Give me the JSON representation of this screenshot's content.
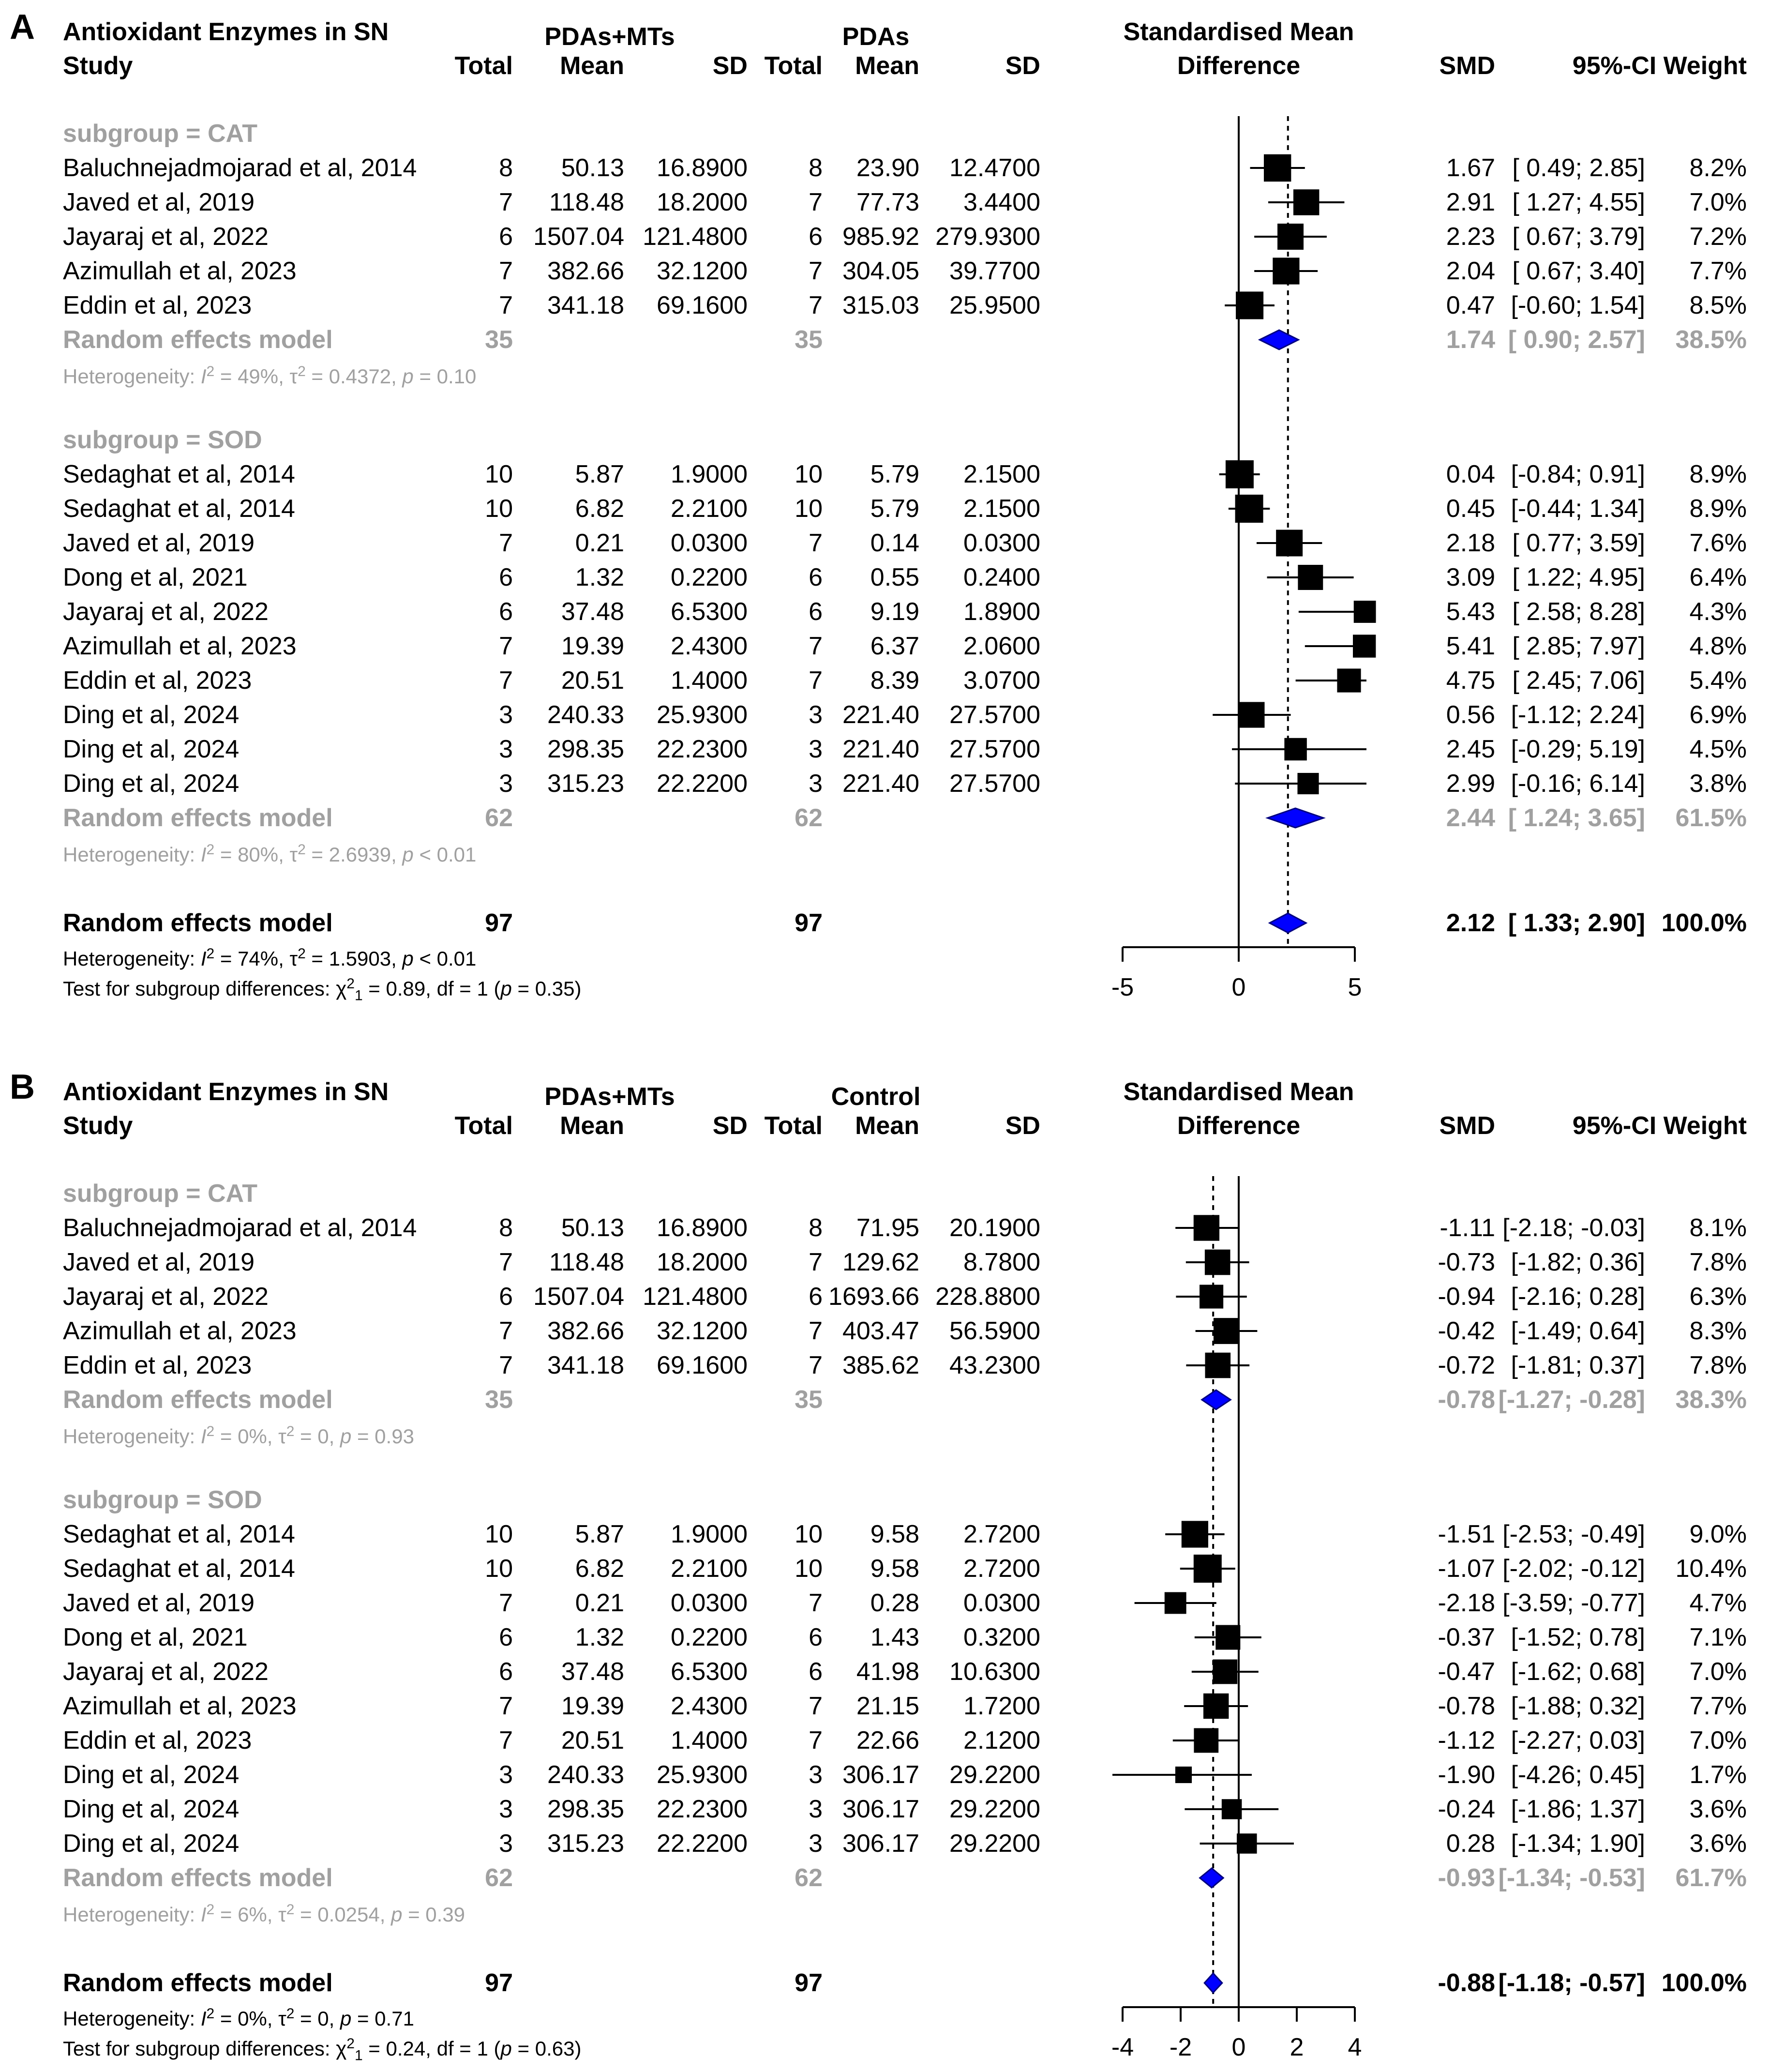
{
  "chart_data": [
    {
      "type": "forest",
      "panel_label": "A",
      "title": "Antioxidant Enzymes in SN",
      "headers": {
        "study": "Study",
        "group1_name": "PDAs+MTs",
        "group2_name": "PDAs",
        "total": "Total",
        "mean": "Mean",
        "sd": "SD",
        "effect_line1": "Standardised Mean",
        "effect_line2": "Difference",
        "smd": "SMD",
        "ci_weight": "95%-CI Weight"
      },
      "xlim": [
        -5,
        5
      ],
      "xticks": [
        "-5",
        "0",
        "5"
      ],
      "overall_line": 2.12,
      "subgroups": [
        {
          "label": "subgroup = CAT",
          "studies": [
            {
              "study": "Baluchnejadmojarad et al, 2014",
              "n1": "8",
              "mean1": "50.13",
              "sd1": "16.8900",
              "n2": "8",
              "mean2": "23.90",
              "sd2": "12.4700",
              "smd": 1.67,
              "lo": 0.49,
              "hi": 2.85,
              "smd_text": "1.67",
              "ci_text": "[ 0.49; 2.85]",
              "weight": "8.2%",
              "w": 8.2
            },
            {
              "study": "Javed et al, 2019",
              "n1": "7",
              "mean1": "118.48",
              "sd1": "18.2000",
              "n2": "7",
              "mean2": "77.73",
              "sd2": "3.4400",
              "smd": 2.91,
              "lo": 1.27,
              "hi": 4.55,
              "smd_text": "2.91",
              "ci_text": "[ 1.27; 4.55]",
              "weight": "7.0%",
              "w": 7.0
            },
            {
              "study": "Jayaraj et al, 2022",
              "n1": "6",
              "mean1": "1507.04",
              "sd1": "121.4800",
              "n2": "6",
              "mean2": "985.92",
              "sd2": "279.9300",
              "smd": 2.23,
              "lo": 0.67,
              "hi": 3.79,
              "smd_text": "2.23",
              "ci_text": "[ 0.67; 3.79]",
              "weight": "7.2%",
              "w": 7.2
            },
            {
              "study": "Azimullah et al, 2023",
              "n1": "7",
              "mean1": "382.66",
              "sd1": "32.1200",
              "n2": "7",
              "mean2": "304.05",
              "sd2": "39.7700",
              "smd": 2.04,
              "lo": 0.67,
              "hi": 3.4,
              "smd_text": "2.04",
              "ci_text": "[ 0.67; 3.40]",
              "weight": "7.7%",
              "w": 7.7
            },
            {
              "study": "Eddin et al, 2023",
              "n1": "7",
              "mean1": "341.18",
              "sd1": "69.1600",
              "n2": "7",
              "mean2": "315.03",
              "sd2": "25.9500",
              "smd": 0.47,
              "lo": -0.6,
              "hi": 1.54,
              "smd_text": "0.47",
              "ci_text": "[-0.60; 1.54]",
              "weight": "8.5%",
              "w": 8.5
            }
          ],
          "pooled": {
            "label": "Random effects model",
            "n1": "35",
            "n2": "35",
            "smd": 1.74,
            "lo": 0.9,
            "hi": 2.57,
            "smd_text": "1.74",
            "ci_text": "[ 0.90; 2.57]",
            "weight": "38.5%"
          },
          "heterogeneity": {
            "prefix": "Heterogeneity: ",
            "I": "I",
            "i2_sup": "2",
            "i2_val": " = 49%, ",
            "tau": "τ",
            "tau_sup": "2",
            "tau_val": " = 0.4372, ",
            "p": "p",
            "p_val": " = 0.10"
          }
        },
        {
          "label": "subgroup = SOD",
          "studies": [
            {
              "study": "Sedaghat et al, 2014",
              "n1": "10",
              "mean1": "5.87",
              "sd1": "1.9000",
              "n2": "10",
              "mean2": "5.79",
              "sd2": "2.1500",
              "smd": 0.04,
              "lo": -0.84,
              "hi": 0.91,
              "smd_text": "0.04",
              "ci_text": "[-0.84; 0.91]",
              "weight": "8.9%",
              "w": 8.9
            },
            {
              "study": "Sedaghat et al, 2014",
              "n1": "10",
              "mean1": "6.82",
              "sd1": "2.2100",
              "n2": "10",
              "mean2": "5.79",
              "sd2": "2.1500",
              "smd": 0.45,
              "lo": -0.44,
              "hi": 1.34,
              "smd_text": "0.45",
              "ci_text": "[-0.44; 1.34]",
              "weight": "8.9%",
              "w": 8.9
            },
            {
              "study": "Javed et al, 2019",
              "n1": "7",
              "mean1": "0.21",
              "sd1": "0.0300",
              "n2": "7",
              "mean2": "0.14",
              "sd2": "0.0300",
              "smd": 2.18,
              "lo": 0.77,
              "hi": 3.59,
              "smd_text": "2.18",
              "ci_text": "[ 0.77; 3.59]",
              "weight": "7.6%",
              "w": 7.6
            },
            {
              "study": "Dong et al, 2021",
              "n1": "6",
              "mean1": "1.32",
              "sd1": "0.2200",
              "n2": "6",
              "mean2": "0.55",
              "sd2": "0.2400",
              "smd": 3.09,
              "lo": 1.22,
              "hi": 4.95,
              "smd_text": "3.09",
              "ci_text": "[ 1.22; 4.95]",
              "weight": "6.4%",
              "w": 6.4
            },
            {
              "study": "Jayaraj et al, 2022",
              "n1": "6",
              "mean1": "37.48",
              "sd1": "6.5300",
              "n2": "6",
              "mean2": "9.19",
              "sd2": "1.8900",
              "smd": 5.43,
              "lo": 2.58,
              "hi": 8.28,
              "smd_text": "5.43",
              "ci_text": "[ 2.58; 8.28]",
              "weight": "4.3%",
              "w": 4.3
            },
            {
              "study": "Azimullah et al, 2023",
              "n1": "7",
              "mean1": "19.39",
              "sd1": "2.4300",
              "n2": "7",
              "mean2": "6.37",
              "sd2": "2.0600",
              "smd": 5.41,
              "lo": 2.85,
              "hi": 7.97,
              "smd_text": "5.41",
              "ci_text": "[ 2.85; 7.97]",
              "weight": "4.8%",
              "w": 4.8
            },
            {
              "study": "Eddin et al, 2023",
              "n1": "7",
              "mean1": "20.51",
              "sd1": "1.4000",
              "n2": "7",
              "mean2": "8.39",
              "sd2": "3.0700",
              "smd": 4.75,
              "lo": 2.45,
              "hi": 7.06,
              "smd_text": "4.75",
              "ci_text": "[ 2.45; 7.06]",
              "weight": "5.4%",
              "w": 5.4
            },
            {
              "study": "Ding et al, 2024",
              "n1": "3",
              "mean1": "240.33",
              "sd1": "25.9300",
              "n2": "3",
              "mean2": "221.40",
              "sd2": "27.5700",
              "smd": 0.56,
              "lo": -1.12,
              "hi": 2.24,
              "smd_text": "0.56",
              "ci_text": "[-1.12; 2.24]",
              "weight": "6.9%",
              "w": 6.9
            },
            {
              "study": "Ding et al, 2024",
              "n1": "3",
              "mean1": "298.35",
              "sd1": "22.2300",
              "n2": "3",
              "mean2": "221.40",
              "sd2": "27.5700",
              "smd": 2.45,
              "lo": -0.29,
              "hi": 5.19,
              "smd_text": "2.45",
              "ci_text": "[-0.29; 5.19]",
              "weight": "4.5%",
              "w": 4.5
            },
            {
              "study": "Ding et al, 2024",
              "n1": "3",
              "mean1": "315.23",
              "sd1": "22.2200",
              "n2": "3",
              "mean2": "221.40",
              "sd2": "27.5700",
              "smd": 2.99,
              "lo": -0.16,
              "hi": 6.14,
              "smd_text": "2.99",
              "ci_text": "[-0.16; 6.14]",
              "weight": "3.8%",
              "w": 3.8
            }
          ],
          "pooled": {
            "label": "Random effects model",
            "n1": "62",
            "n2": "62",
            "smd": 2.44,
            "lo": 1.24,
            "hi": 3.65,
            "smd_text": "2.44",
            "ci_text": "[ 1.24; 3.65]",
            "weight": "61.5%"
          },
          "heterogeneity": {
            "prefix": "Heterogeneity: ",
            "I": "I",
            "i2_sup": "2",
            "i2_val": " = 80%, ",
            "tau": "τ",
            "tau_sup": "2",
            "tau_val": " = 2.6939, ",
            "p": "p",
            "p_val": " < 0.01"
          }
        }
      ],
      "overall": {
        "label": "Random effects model",
        "n1": "97",
        "n2": "97",
        "smd": 2.12,
        "lo": 1.33,
        "hi": 2.9,
        "smd_text": "2.12",
        "ci_text": "[ 1.33; 2.90]",
        "weight": "100.0%"
      },
      "overall_heterogeneity": {
        "prefix": "Heterogeneity: ",
        "I": "I",
        "i2_sup": "2",
        "i2_val": " = 74%, ",
        "tau": "τ",
        "tau_sup": "2",
        "tau_val": " = 1.5903, ",
        "p": "p",
        "p_val": " < 0.01"
      },
      "subgroup_test": {
        "prefix": "Test for subgroup differences: ",
        "chi": "χ",
        "chi_sup": "2",
        "chi_sub": "1",
        "chi_val": " = 0.89, df = 1 (",
        "p": "p",
        "p_val": " = 0.35)"
      }
    },
    {
      "type": "forest",
      "panel_label": "B",
      "title": "Antioxidant Enzymes in SN",
      "headers": {
        "study": "Study",
        "group1_name": "PDAs+MTs",
        "group2_name": "Control",
        "total": "Total",
        "mean": "Mean",
        "sd": "SD",
        "effect_line1": "Standardised Mean",
        "effect_line2": "Difference",
        "smd": "SMD",
        "ci_weight": "95%-CI Weight"
      },
      "xlim": [
        -4,
        4
      ],
      "xticks": [
        "-4",
        "-2",
        "0",
        "2",
        "4"
      ],
      "overall_line": -0.88,
      "subgroups": [
        {
          "label": "subgroup = CAT",
          "studies": [
            {
              "study": "Baluchnejadmojarad et al, 2014",
              "n1": "8",
              "mean1": "50.13",
              "sd1": "16.8900",
              "n2": "8",
              "mean2": "71.95",
              "sd2": "20.1900",
              "smd": -1.11,
              "lo": -2.18,
              "hi": -0.03,
              "smd_text": "-1.11",
              "ci_text": "[-2.18; -0.03]",
              "weight": "8.1%",
              "w": 8.1
            },
            {
              "study": "Javed et al, 2019",
              "n1": "7",
              "mean1": "118.48",
              "sd1": "18.2000",
              "n2": "7",
              "mean2": "129.62",
              "sd2": "8.7800",
              "smd": -0.73,
              "lo": -1.82,
              "hi": 0.36,
              "smd_text": "-0.73",
              "ci_text": "[-1.82; 0.36]",
              "weight": "7.8%",
              "w": 7.8
            },
            {
              "study": "Jayaraj et al, 2022",
              "n1": "6",
              "mean1": "1507.04",
              "sd1": "121.4800",
              "n2": "6",
              "mean2": "1693.66",
              "sd2": "228.8800",
              "smd": -0.94,
              "lo": -2.16,
              "hi": 0.28,
              "smd_text": "-0.94",
              "ci_text": "[-2.16; 0.28]",
              "weight": "6.3%",
              "w": 6.3
            },
            {
              "study": "Azimullah et al, 2023",
              "n1": "7",
              "mean1": "382.66",
              "sd1": "32.1200",
              "n2": "7",
              "mean2": "403.47",
              "sd2": "56.5900",
              "smd": -0.42,
              "lo": -1.49,
              "hi": 0.64,
              "smd_text": "-0.42",
              "ci_text": "[-1.49; 0.64]",
              "weight": "8.3%",
              "w": 8.3
            },
            {
              "study": "Eddin et al, 2023",
              "n1": "7",
              "mean1": "341.18",
              "sd1": "69.1600",
              "n2": "7",
              "mean2": "385.62",
              "sd2": "43.2300",
              "smd": -0.72,
              "lo": -1.81,
              "hi": 0.37,
              "smd_text": "-0.72",
              "ci_text": "[-1.81; 0.37]",
              "weight": "7.8%",
              "w": 7.8
            }
          ],
          "pooled": {
            "label": "Random effects model",
            "n1": "35",
            "n2": "35",
            "smd": -0.78,
            "lo": -1.27,
            "hi": -0.28,
            "smd_text": "-0.78",
            "ci_text": "[-1.27; -0.28]",
            "weight": "38.3%"
          },
          "heterogeneity": {
            "prefix": "Heterogeneity: ",
            "I": "I",
            "i2_sup": "2",
            "i2_val": " = 0%, ",
            "tau": "τ",
            "tau_sup": "2",
            "tau_val": " = 0, ",
            "p": "p",
            "p_val": " = 0.93"
          }
        },
        {
          "label": "subgroup = SOD",
          "studies": [
            {
              "study": "Sedaghat et al, 2014",
              "n1": "10",
              "mean1": "5.87",
              "sd1": "1.9000",
              "n2": "10",
              "mean2": "9.58",
              "sd2": "2.7200",
              "smd": -1.51,
              "lo": -2.53,
              "hi": -0.49,
              "smd_text": "-1.51",
              "ci_text": "[-2.53; -0.49]",
              "weight": "9.0%",
              "w": 9.0
            },
            {
              "study": "Sedaghat et al, 2014",
              "n1": "10",
              "mean1": "6.82",
              "sd1": "2.2100",
              "n2": "10",
              "mean2": "9.58",
              "sd2": "2.7200",
              "smd": -1.07,
              "lo": -2.02,
              "hi": -0.12,
              "smd_text": "-1.07",
              "ci_text": "[-2.02; -0.12]",
              "weight": "10.4%",
              "w": 10.4
            },
            {
              "study": "Javed et al, 2019",
              "n1": "7",
              "mean1": "0.21",
              "sd1": "0.0300",
              "n2": "7",
              "mean2": "0.28",
              "sd2": "0.0300",
              "smd": -2.18,
              "lo": -3.59,
              "hi": -0.77,
              "smd_text": "-2.18",
              "ci_text": "[-3.59; -0.77]",
              "weight": "4.7%",
              "w": 4.7
            },
            {
              "study": "Dong et al, 2021",
              "n1": "6",
              "mean1": "1.32",
              "sd1": "0.2200",
              "n2": "6",
              "mean2": "1.43",
              "sd2": "0.3200",
              "smd": -0.37,
              "lo": -1.52,
              "hi": 0.78,
              "smd_text": "-0.37",
              "ci_text": "[-1.52; 0.78]",
              "weight": "7.1%",
              "w": 7.1
            },
            {
              "study": "Jayaraj et al, 2022",
              "n1": "6",
              "mean1": "37.48",
              "sd1": "6.5300",
              "n2": "6",
              "mean2": "41.98",
              "sd2": "10.6300",
              "smd": -0.47,
              "lo": -1.62,
              "hi": 0.68,
              "smd_text": "-0.47",
              "ci_text": "[-1.62; 0.68]",
              "weight": "7.0%",
              "w": 7.0
            },
            {
              "study": "Azimullah et al, 2023",
              "n1": "7",
              "mean1": "19.39",
              "sd1": "2.4300",
              "n2": "7",
              "mean2": "21.15",
              "sd2": "1.7200",
              "smd": -0.78,
              "lo": -1.88,
              "hi": 0.32,
              "smd_text": "-0.78",
              "ci_text": "[-1.88; 0.32]",
              "weight": "7.7%",
              "w": 7.7
            },
            {
              "study": "Eddin et al, 2023",
              "n1": "7",
              "mean1": "20.51",
              "sd1": "1.4000",
              "n2": "7",
              "mean2": "22.66",
              "sd2": "2.1200",
              "smd": -1.12,
              "lo": -2.27,
              "hi": 0.03,
              "smd_text": "-1.12",
              "ci_text": "[-2.27; 0.03]",
              "weight": "7.0%",
              "w": 7.0
            },
            {
              "study": "Ding et al, 2024",
              "n1": "3",
              "mean1": "240.33",
              "sd1": "25.9300",
              "n2": "3",
              "mean2": "306.17",
              "sd2": "29.2200",
              "smd": -1.9,
              "lo": -4.26,
              "hi": 0.45,
              "smd_text": "-1.90",
              "ci_text": "[-4.26; 0.45]",
              "weight": "1.7%",
              "w": 1.7
            },
            {
              "study": "Ding et al, 2024",
              "n1": "3",
              "mean1": "298.35",
              "sd1": "22.2300",
              "n2": "3",
              "mean2": "306.17",
              "sd2": "29.2200",
              "smd": -0.24,
              "lo": -1.86,
              "hi": 1.37,
              "smd_text": "-0.24",
              "ci_text": "[-1.86; 1.37]",
              "weight": "3.6%",
              "w": 3.6
            },
            {
              "study": "Ding et al, 2024",
              "n1": "3",
              "mean1": "315.23",
              "sd1": "22.2200",
              "n2": "3",
              "mean2": "306.17",
              "sd2": "29.2200",
              "smd": 0.28,
              "lo": -1.34,
              "hi": 1.9,
              "smd_text": "0.28",
              "ci_text": "[-1.34; 1.90]",
              "weight": "3.6%",
              "w": 3.6
            }
          ],
          "pooled": {
            "label": "Random effects model",
            "n1": "62",
            "n2": "62",
            "smd": -0.93,
            "lo": -1.34,
            "hi": -0.53,
            "smd_text": "-0.93",
            "ci_text": "[-1.34; -0.53]",
            "weight": "61.7%"
          },
          "heterogeneity": {
            "prefix": "Heterogeneity: ",
            "I": "I",
            "i2_sup": "2",
            "i2_val": " = 6%, ",
            "tau": "τ",
            "tau_sup": "2",
            "tau_val": " = 0.0254, ",
            "p": "p",
            "p_val": " = 0.39"
          }
        }
      ],
      "overall": {
        "label": "Random effects model",
        "n1": "97",
        "n2": "97",
        "smd": -0.88,
        "lo": -1.18,
        "hi": -0.57,
        "smd_text": "-0.88",
        "ci_text": "[-1.18; -0.57]",
        "weight": "100.0%"
      },
      "overall_heterogeneity": {
        "prefix": "Heterogeneity: ",
        "I": "I",
        "i2_sup": "2",
        "i2_val": " = 0%, ",
        "tau": "τ",
        "tau_sup": "2",
        "tau_val": " = 0, ",
        "p": "p",
        "p_val": " = 0.71"
      },
      "subgroup_test": {
        "prefix": "Test for subgroup differences: ",
        "chi": "χ",
        "chi_sup": "2",
        "chi_sub": "1",
        "chi_val": " = 0.24, df = 1 (",
        "p": "p",
        "p_val": " = 0.63)"
      }
    }
  ],
  "colors": {
    "diamond_fill": "#0000ff",
    "diamond_stroke": "#000080",
    "pooled_text": "#a0a0a0",
    "square": "#000000"
  }
}
